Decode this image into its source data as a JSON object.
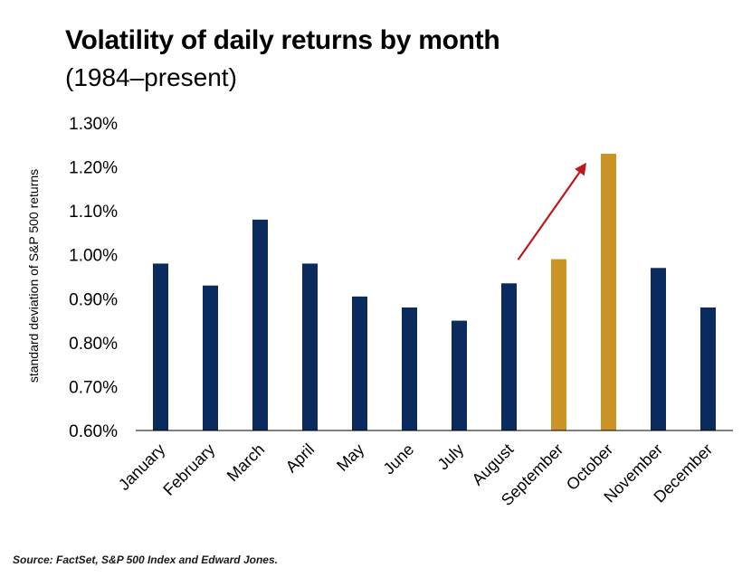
{
  "chart_data": {
    "type": "bar",
    "title": "Volatility of daily returns by month",
    "subtitle": "(1984–present)",
    "xlabel": "",
    "ylabel": "standard deviation of S&P 500 returns",
    "categories": [
      "January",
      "February",
      "March",
      "April",
      "May",
      "June",
      "July",
      "August",
      "September",
      "October",
      "November",
      "December"
    ],
    "values": [
      0.98,
      0.93,
      1.08,
      0.98,
      0.905,
      0.88,
      0.85,
      0.935,
      0.99,
      1.23,
      0.97,
      0.88
    ],
    "value_unit": "%",
    "ylim": [
      0.6,
      1.3
    ],
    "yticks": [
      "0.60%",
      "0.70%",
      "0.80%",
      "0.90%",
      "1.00%",
      "1.10%",
      "1.20%",
      "1.30%"
    ],
    "ytick_values": [
      0.6,
      0.7,
      0.8,
      0.9,
      1.0,
      1.1,
      1.2,
      1.3
    ],
    "grid": false,
    "legend": "none",
    "highlighted_categories": [
      "September",
      "October"
    ],
    "annotation": "arrow from August rising toward October",
    "colors": {
      "bar": "#0b2a5e",
      "highlight": "#cc9427",
      "arrow": "#c0171d",
      "axis": "#000000"
    },
    "source": "Source: FactSet, S&P 500 Index and Edward Jones."
  }
}
